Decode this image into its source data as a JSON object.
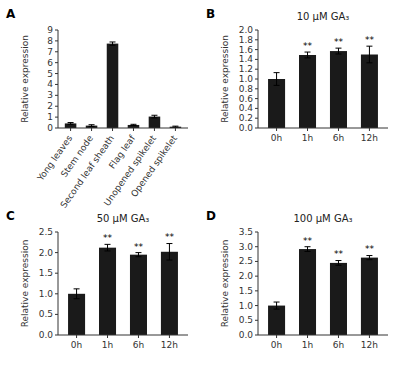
{
  "chart_data": [
    {
      "type": "bar",
      "panel_label": "A",
      "categories": [
        "Yong leaves",
        "Stem node",
        "Second leaf sheath",
        "Flag leaf",
        "Unopened spikelet",
        "Opened spikelet"
      ],
      "values": [
        0.42,
        0.22,
        7.75,
        0.28,
        1.05,
        0.12
      ],
      "errors": [
        0.08,
        0.08,
        0.15,
        0.06,
        0.12,
        0.05
      ],
      "ylabel": "Relative expression",
      "color": "#1a1a1a",
      "grid": false,
      "ylim": [
        0,
        9
      ],
      "yticks": [
        0,
        1,
        2,
        3,
        4,
        5,
        6,
        7,
        8,
        9
      ]
    },
    {
      "type": "bar",
      "panel_label": "B",
      "title": "10 μM GA₃",
      "categories": [
        "0h",
        "1h",
        "6h",
        "12h"
      ],
      "values": [
        1.0,
        1.49,
        1.57,
        1.5
      ],
      "errors": [
        0.13,
        0.06,
        0.06,
        0.17
      ],
      "sig_labels": [
        null,
        "**",
        "**",
        "**"
      ],
      "ylabel": "Relative expression",
      "color": "#1a1a1a",
      "grid": false,
      "ylim": [
        0,
        2.0
      ],
      "yticks": [
        {
          "value": 0,
          "label": "0.0"
        },
        0.2,
        0.4,
        0.6,
        0.8,
        {
          "value": 1.0,
          "label": "1.0"
        },
        1.2,
        1.4,
        1.6,
        1.8,
        {
          "value": 2.0,
          "label": "2.0"
        }
      ]
    },
    {
      "type": "bar",
      "panel_label": "C",
      "title": "50 μM GA₃",
      "categories": [
        "0h",
        "1h",
        "6h",
        "12h"
      ],
      "values": [
        1.0,
        2.12,
        1.95,
        2.02
      ],
      "errors": [
        0.12,
        0.08,
        0.05,
        0.2
      ],
      "sig_labels": [
        null,
        "**",
        "**",
        "**"
      ],
      "ylabel": "Relative expression",
      "color": "#1a1a1a",
      "grid": false,
      "ylim": [
        0,
        2.5
      ],
      "yticks": [
        {
          "value": 0,
          "label": "0.0"
        },
        0.5,
        {
          "value": 1.0,
          "label": "1.0"
        },
        1.5,
        {
          "value": 2.0,
          "label": "2.0"
        },
        2.5
      ]
    },
    {
      "type": "bar",
      "panel_label": "D",
      "title": "100 μM GA₃",
      "categories": [
        "0h",
        "1h",
        "6h",
        "12h"
      ],
      "values": [
        1.0,
        2.92,
        2.45,
        2.63
      ],
      "errors": [
        0.12,
        0.08,
        0.08,
        0.07
      ],
      "sig_labels": [
        null,
        "**",
        "**",
        "**"
      ],
      "ylabel": "Relative expression",
      "color": "#1a1a1a",
      "grid": false,
      "ylim": [
        0,
        3.5
      ],
      "yticks": [
        {
          "value": 0,
          "label": "0.0"
        },
        0.5,
        {
          "value": 1.0,
          "label": "1.0"
        },
        1.5,
        {
          "value": 2.0,
          "label": "2.0"
        },
        2.5,
        {
          "value": 3.0,
          "label": "3.0"
        },
        3.5
      ]
    }
  ]
}
